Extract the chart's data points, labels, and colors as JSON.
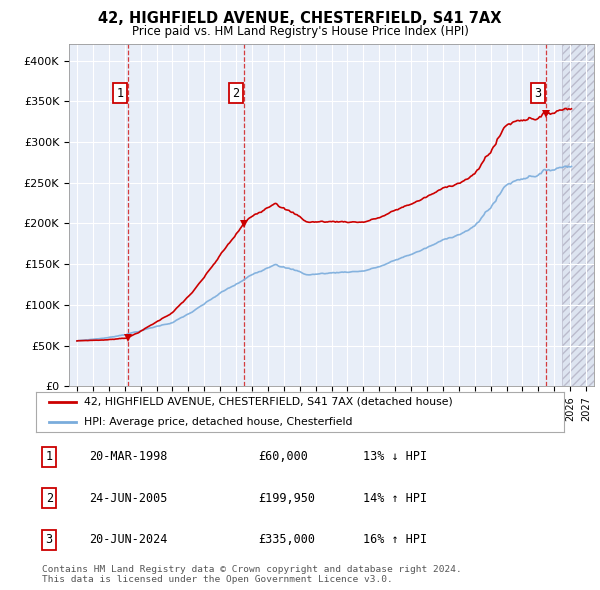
{
  "title": "42, HIGHFIELD AVENUE, CHESTERFIELD, S41 7AX",
  "subtitle": "Price paid vs. HM Land Registry's House Price Index (HPI)",
  "ylim": [
    0,
    420000
  ],
  "yticks": [
    0,
    50000,
    100000,
    150000,
    200000,
    250000,
    300000,
    350000,
    400000
  ],
  "ytick_labels": [
    "£0",
    "£50K",
    "£100K",
    "£150K",
    "£200K",
    "£250K",
    "£300K",
    "£350K",
    "£400K"
  ],
  "sale_dates": [
    1998.22,
    2005.48,
    2024.47
  ],
  "sale_prices": [
    60000,
    199950,
    335000
  ],
  "sale_labels": [
    "1",
    "2",
    "3"
  ],
  "sale_annotations": [
    "20-MAR-1998",
    "24-JUN-2005",
    "20-JUN-2024"
  ],
  "sale_amounts": [
    "£60,000",
    "£199,950",
    "£335,000"
  ],
  "sale_hpi": [
    "13% ↓ HPI",
    "14% ↑ HPI",
    "16% ↑ HPI"
  ],
  "property_color": "#cc0000",
  "hpi_color": "#7aacdc",
  "background_color": "#e8eef8",
  "legend_label_property": "42, HIGHFIELD AVENUE, CHESTERFIELD, S41 7AX (detached house)",
  "legend_label_hpi": "HPI: Average price, detached house, Chesterfield",
  "footnote": "Contains HM Land Registry data © Crown copyright and database right 2024.\nThis data is licensed under the Open Government Licence v3.0.",
  "xmin": 1994.5,
  "xmax": 2027.5,
  "hpi_start_year": 1995,
  "hpi_end_year": 2026
}
